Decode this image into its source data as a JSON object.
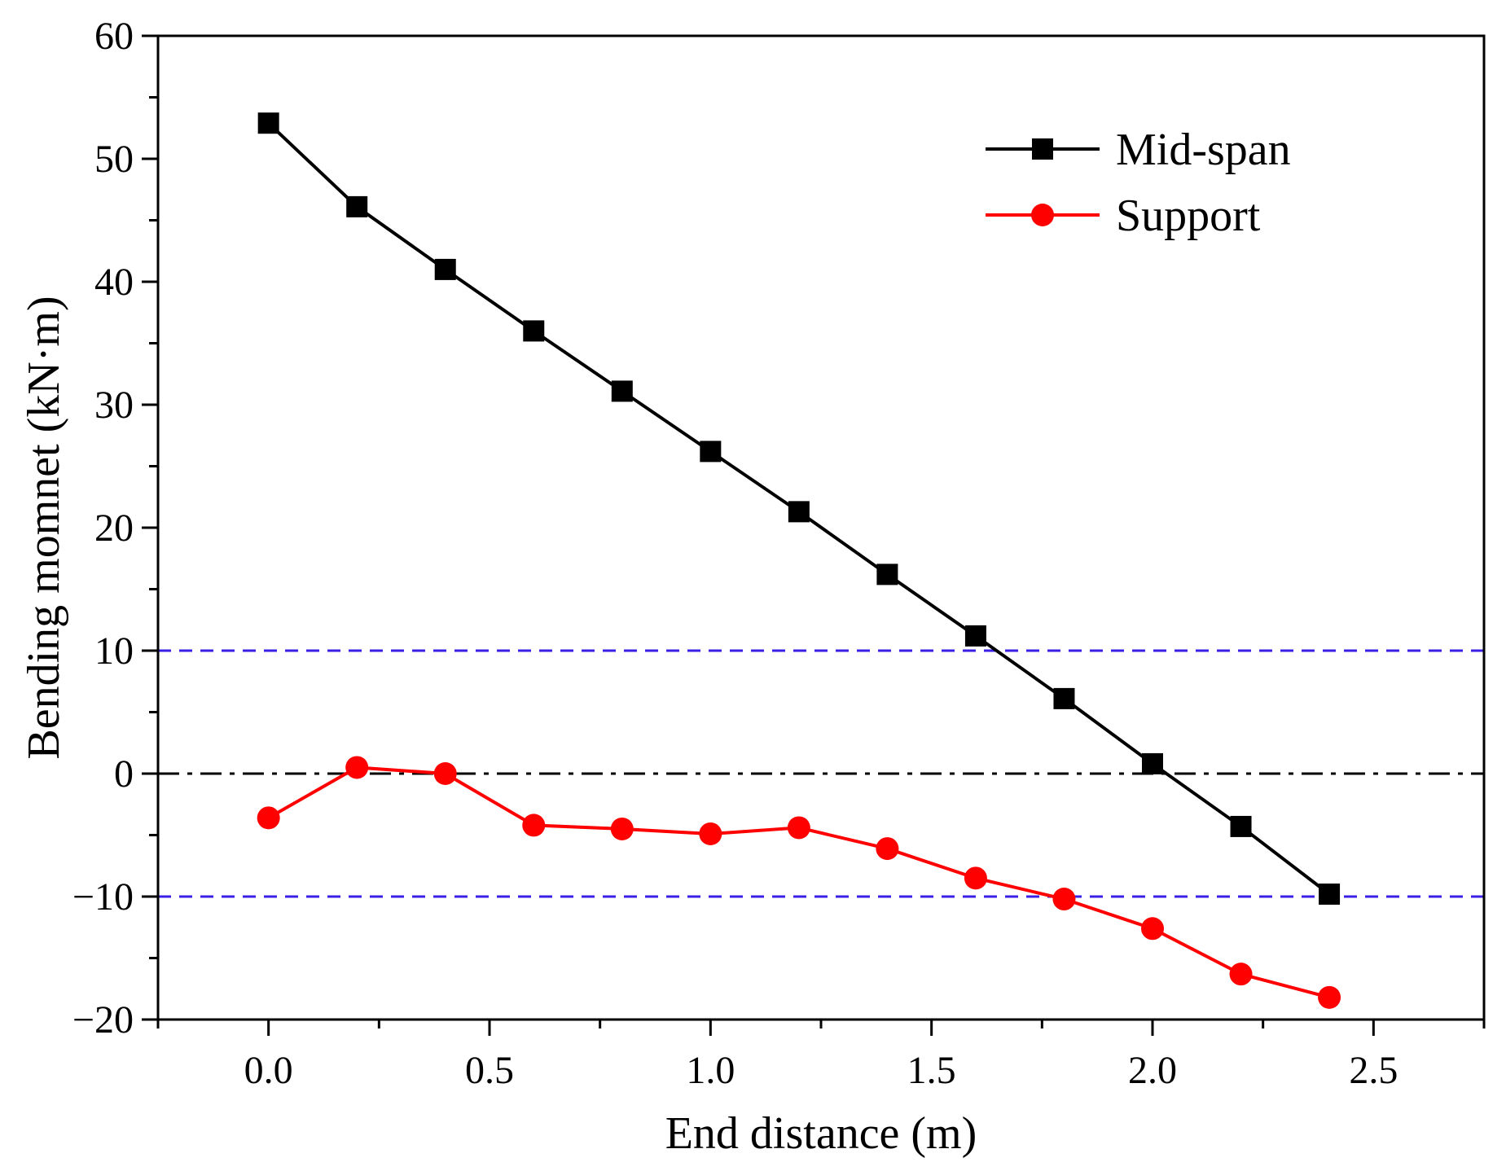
{
  "chart_data": {
    "type": "line",
    "title": "",
    "xlabel": "End distance (m)",
    "ylabel": "Bending momnet (kN·m)",
    "xlim": [
      -0.25,
      2.75
    ],
    "ylim": [
      -20,
      60
    ],
    "x_ticks": [
      0.0,
      0.5,
      1.0,
      1.5,
      2.0,
      2.5
    ],
    "x_tick_labels": [
      "0.0",
      "0.5",
      "1.0",
      "1.5",
      "2.0",
      "2.5"
    ],
    "y_ticks": [
      -20,
      -10,
      0,
      10,
      20,
      30,
      40,
      50,
      60
    ],
    "y_tick_labels": [
      "−20",
      "−10",
      "0",
      "10",
      "20",
      "30",
      "40",
      "50",
      "60"
    ],
    "grid": false,
    "legend_position": "top-right",
    "x": [
      0.0,
      0.2,
      0.4,
      0.6,
      0.8,
      1.0,
      1.2,
      1.4,
      1.6,
      1.8,
      2.0,
      2.2,
      2.4
    ],
    "series": [
      {
        "name": "Mid-span",
        "marker": "square",
        "color": "#000000",
        "values": [
          52.9,
          46.1,
          41.0,
          36.0,
          31.1,
          26.2,
          21.3,
          16.2,
          11.2,
          6.1,
          0.8,
          -4.3,
          -9.8
        ]
      },
      {
        "name": "Support",
        "marker": "circle",
        "color": "#ff0000",
        "values": [
          -3.6,
          0.5,
          0.0,
          -4.2,
          -4.5,
          -4.9,
          -4.4,
          -6.1,
          -8.5,
          -10.2,
          -12.6,
          -16.3,
          -18.2
        ]
      }
    ],
    "reference_lines": [
      {
        "name": "upper-limit",
        "y": 10,
        "style": "dashed",
        "color": "#3a20e6"
      },
      {
        "name": "zero",
        "y": 0,
        "style": "dash-dot",
        "color": "#000000"
      },
      {
        "name": "lower-limit",
        "y": -10,
        "style": "dashed",
        "color": "#3a20e6"
      }
    ]
  }
}
